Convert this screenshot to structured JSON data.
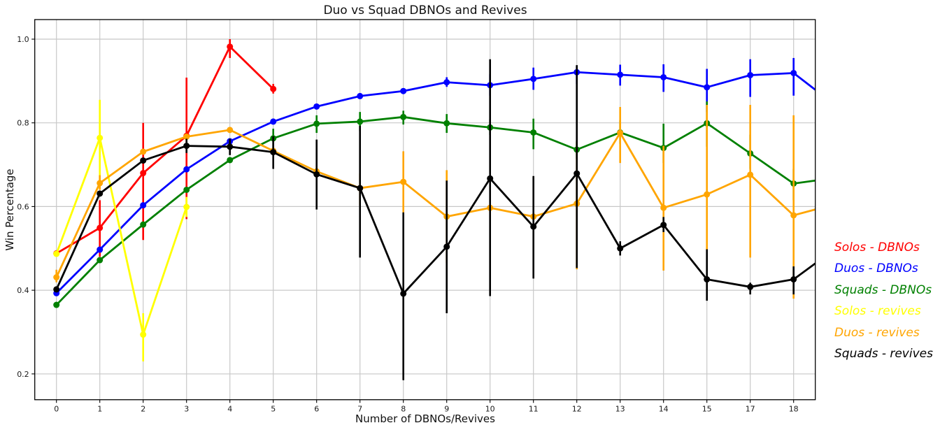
{
  "chart_data": {
    "type": "line",
    "title": "Duo vs Squad DBNOs and Revives",
    "xlabel": "Number of DBNOs/Revives",
    "ylabel": "Win Percentage",
    "categories": [
      "0",
      "1",
      "2",
      "3",
      "4",
      "5",
      "6",
      "7",
      "8",
      "9",
      "10",
      "11",
      "12",
      "13",
      "14",
      "15",
      "17",
      "18"
    ],
    "yticks": [
      0.2,
      0.4,
      0.6,
      0.8,
      1.0
    ],
    "ylim": [
      0.138,
      1.047
    ],
    "grid": true,
    "grid_color": "#c8c8c8",
    "legend_position": "right-outside",
    "marker": "circle",
    "error_bars_shown": true,
    "series": [
      {
        "id": "solos-dbnos",
        "name": "Solos - DBNOs",
        "color": "#ff0000",
        "values": [
          0.488,
          0.549,
          0.68,
          0.769,
          0.982,
          0.881,
          null,
          null,
          null,
          null,
          null,
          null,
          null,
          null,
          null,
          null,
          null,
          null
        ],
        "error_bars": [
          null,
          [
            0.48,
            0.615
          ],
          [
            0.52,
            0.8
          ],
          [
            0.57,
            0.908
          ],
          [
            0.955,
            1.0
          ],
          [
            0.87,
            0.893
          ],
          null,
          null,
          null,
          null,
          null,
          null,
          null,
          null,
          null,
          null,
          null,
          null
        ],
        "edge_extension_value": null
      },
      {
        "id": "duos-dbnos",
        "name": "Duos - DBNOs",
        "color": "#0000ff",
        "values": [
          0.393,
          0.497,
          0.603,
          0.689,
          0.756,
          0.803,
          0.839,
          0.864,
          0.876,
          0.897,
          0.89,
          0.905,
          0.921,
          0.915,
          0.909,
          0.885,
          0.914,
          0.919
        ],
        "error_bars": [
          null,
          null,
          null,
          null,
          null,
          null,
          null,
          null,
          null,
          [
            0.886,
            0.909
          ],
          [
            0.865,
            0.916
          ],
          [
            0.879,
            0.932
          ],
          [
            0.893,
            0.935
          ],
          [
            0.889,
            0.939
          ],
          [
            0.874,
            0.94
          ],
          [
            0.826,
            0.929
          ],
          [
            0.862,
            0.952
          ],
          [
            0.865,
            0.955
          ]
        ],
        "edge_extension_value": 0.879
      },
      {
        "id": "squads-dbnos",
        "name": "Squads - DBNOs",
        "color": "#008000",
        "values": [
          0.365,
          0.472,
          0.557,
          0.64,
          0.711,
          0.763,
          0.798,
          0.803,
          0.814,
          0.799,
          0.789,
          0.777,
          0.736,
          0.777,
          0.74,
          0.799,
          0.727,
          0.655
        ],
        "error_bars": [
          null,
          null,
          null,
          null,
          null,
          [
            0.74,
            0.786
          ],
          [
            0.776,
            0.818
          ],
          [
            0.78,
            0.826
          ],
          [
            0.796,
            0.829
          ],
          [
            0.776,
            0.821
          ],
          [
            0.771,
            0.808
          ],
          [
            0.737,
            0.81
          ],
          [
            0.714,
            0.757
          ],
          [
            0.75,
            0.806
          ],
          [
            0.704,
            0.798
          ],
          [
            0.743,
            0.851
          ],
          [
            0.69,
            0.772
          ],
          [
            0.615,
            0.69
          ]
        ],
        "edge_extension_value": 0.662
      },
      {
        "id": "solos-revives",
        "name": "Solos - revives",
        "color": "#ffff00",
        "values": [
          0.487,
          0.764,
          0.294,
          0.599,
          null,
          null,
          null,
          null,
          null,
          null,
          null,
          null,
          null,
          null,
          null,
          null,
          null,
          null
        ],
        "error_bars": [
          null,
          [
            0.645,
            0.855
          ],
          [
            0.23,
            0.345
          ],
          [
            0.575,
            0.623
          ],
          null,
          null,
          null,
          null,
          null,
          null,
          null,
          null,
          null,
          null,
          null,
          null,
          null,
          null
        ],
        "edge_extension_value": null
      },
      {
        "id": "duos-revives",
        "name": "Duos - revives",
        "color": "#ffa500",
        "values": [
          0.431,
          0.656,
          0.731,
          0.767,
          0.783,
          0.733,
          0.684,
          0.644,
          0.659,
          0.576,
          0.597,
          0.576,
          0.607,
          0.776,
          0.597,
          0.629,
          0.676,
          0.579
        ],
        "error_bars": [
          [
            0.419,
            0.449
          ],
          [
            0.64,
            0.675
          ],
          null,
          null,
          null,
          null,
          null,
          [
            0.603,
            0.679
          ],
          [
            0.586,
            0.732
          ],
          [
            0.465,
            0.687
          ],
          null,
          null,
          [
            0.45,
            0.755
          ],
          [
            0.704,
            0.838
          ],
          [
            0.447,
            0.745
          ],
          [
            0.498,
            0.843
          ],
          [
            0.478,
            0.843
          ],
          [
            0.38,
            0.818
          ]
        ],
        "edge_extension_value": 0.593
      },
      {
        "id": "squads-revives",
        "name": "Squads - revives",
        "color": "#000000",
        "values": [
          0.402,
          0.631,
          0.71,
          0.745,
          0.743,
          0.73,
          0.677,
          0.644,
          0.392,
          0.504,
          0.667,
          0.552,
          0.679,
          0.5,
          0.556,
          0.426,
          0.408,
          0.426
        ],
        "error_bars": [
          null,
          null,
          null,
          [
            0.728,
            0.762
          ],
          [
            0.723,
            0.762
          ],
          [
            0.69,
            0.768
          ],
          [
            0.593,
            0.76
          ],
          [
            0.478,
            0.793
          ],
          [
            0.185,
            0.586
          ],
          [
            0.345,
            0.662
          ],
          [
            0.386,
            0.952
          ],
          [
            0.428,
            0.673
          ],
          [
            0.453,
            0.938
          ],
          [
            0.483,
            0.517
          ],
          [
            0.539,
            0.575
          ],
          [
            0.375,
            0.498
          ],
          [
            0.39,
            0.418
          ],
          [
            0.39,
            0.457
          ]
        ],
        "edge_extension_value": 0.464
      }
    ]
  },
  "legend": {
    "items": [
      {
        "label": "Solos - DBNOs",
        "color": "#ff0000"
      },
      {
        "label": "Duos - DBNOs",
        "color": "#0000ff"
      },
      {
        "label": "Squads - DBNOs",
        "color": "#008000"
      },
      {
        "label": "Solos - revives",
        "color": "#ffff00"
      },
      {
        "label": "Duos - revives",
        "color": "#ffa500"
      },
      {
        "label": "Squads - revives",
        "color": "#000000"
      }
    ]
  }
}
